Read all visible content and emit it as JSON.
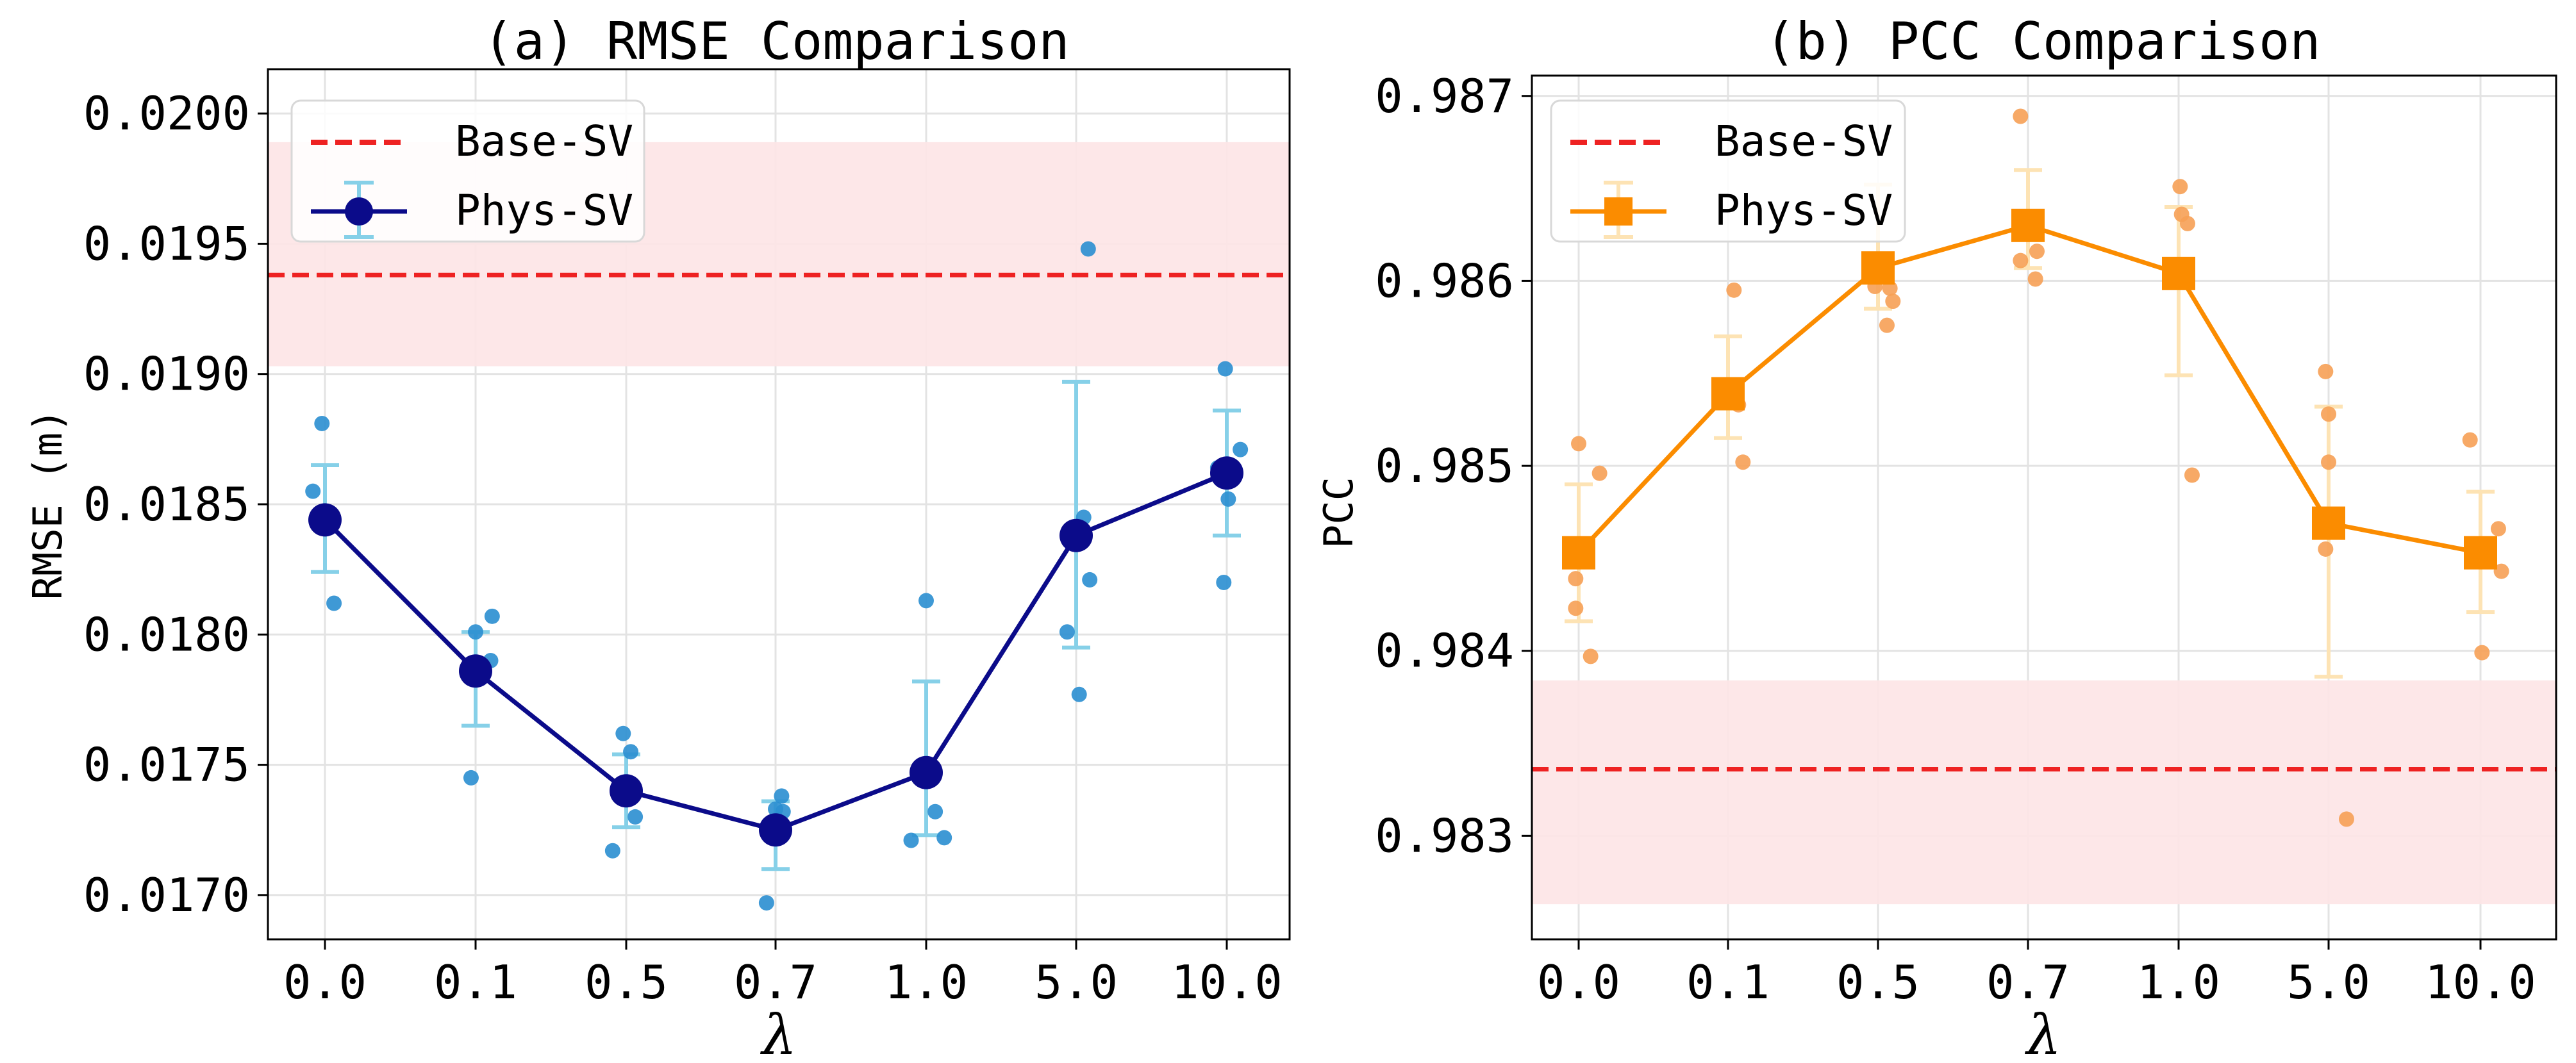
{
  "colors": {
    "base_line": "#ee2222",
    "base_band": "#fde4e6",
    "grid": "#e3e3e3",
    "rmse_line": "#0b0b8a",
    "rmse_err": "#86d0e8",
    "rmse_scatter": "#2a8ed0",
    "pcc_line": "#fb8c00",
    "pcc_err": "#fde3b4",
    "pcc_scatter": "#f6a055"
  },
  "chart_data": [
    {
      "type": "line",
      "id": "rmse",
      "title": "(a) RMSE Comparison",
      "xlabel": "λ",
      "ylabel": "RMSE (m)",
      "categories": [
        "0.0",
        "0.1",
        "0.5",
        "0.7",
        "1.0",
        "5.0",
        "10.0"
      ],
      "ylim": [
        0.01683,
        0.02017
      ],
      "yticks": [
        0.017,
        0.0175,
        0.018,
        0.0185,
        0.019,
        0.0195,
        0.02
      ],
      "ytick_labels": [
        "0.0170",
        "0.0175",
        "0.0180",
        "0.0185",
        "0.0190",
        "0.0195",
        "0.0200"
      ],
      "legend": [
        "Base-SV",
        "Phys-SV"
      ],
      "legend_position": "top-left",
      "baseline": {
        "name": "Base-SV",
        "value": 0.01938,
        "band": [
          0.01903,
          0.01989
        ]
      },
      "series": [
        {
          "name": "Phys-SV",
          "marker": "circle",
          "values": [
            0.01844,
            0.01786,
            0.0174,
            0.01725,
            0.01747,
            0.01838,
            0.01862
          ],
          "err_low": [
            0.01824,
            0.01765,
            0.01726,
            0.0171,
            0.01723,
            0.01795,
            0.01838
          ],
          "err_high": [
            0.01865,
            0.01801,
            0.01754,
            0.01736,
            0.01782,
            0.01897,
            0.01886
          ]
        }
      ],
      "runs": [
        {
          "x": [
            -0.08,
            -0.02,
            0.01,
            0.06
          ],
          "y": [
            0.01855,
            0.01881,
            0.01844,
            0.01812
          ]
        },
        {
          "x": [
            -0.03,
            0.0,
            0.1,
            0.11
          ],
          "y": [
            0.01745,
            0.01801,
            0.0179,
            0.01807
          ]
        },
        {
          "x": [
            -0.09,
            -0.02,
            0.03,
            0.06
          ],
          "y": [
            0.01717,
            0.01762,
            0.01755,
            0.0173
          ]
        },
        {
          "x": [
            -0.06,
            0.0,
            0.04,
            0.05
          ],
          "y": [
            0.01697,
            0.01733,
            0.01738,
            0.01732
          ]
        },
        {
          "x": [
            -0.1,
            0.0,
            0.06,
            0.12
          ],
          "y": [
            0.01721,
            0.01813,
            0.01732,
            0.01722
          ]
        },
        {
          "x": [
            -0.06,
            0.02,
            0.05,
            0.09
          ],
          "y": [
            0.01801,
            0.01777,
            0.01845,
            0.01821
          ]
        },
        {
          "x": [
            -0.06,
            -0.01,
            0.01,
            0.09
          ],
          "y": [
            0.01864,
            0.01902,
            0.01852,
            0.01871
          ]
        }
      ],
      "outliers": [
        {
          "cat": 5,
          "dx": 0.08,
          "y": 0.01948
        },
        {
          "cat": 6,
          "dx": -0.02,
          "y": 0.0182
        }
      ]
    },
    {
      "type": "line",
      "id": "pcc",
      "title": "(b) PCC Comparison",
      "xlabel": "λ",
      "ylabel": "PCC",
      "categories": [
        "0.0",
        "0.1",
        "0.5",
        "0.7",
        "1.0",
        "5.0",
        "10.0"
      ],
      "ylim": [
        0.98244,
        0.98711
      ],
      "yticks": [
        0.983,
        0.984,
        0.985,
        0.986,
        0.987
      ],
      "ytick_labels": [
        "0.983",
        "0.984",
        "0.985",
        "0.986",
        "0.987"
      ],
      "legend": [
        "Base-SV",
        "Phys-SV"
      ],
      "legend_position": "top-left",
      "baseline": {
        "name": "Base-SV",
        "value": 0.98336,
        "band": [
          0.98263,
          0.98384
        ]
      },
      "series": [
        {
          "name": "Phys-SV",
          "marker": "square",
          "values": [
            0.98453,
            0.98539,
            0.98607,
            0.9863,
            0.98604,
            0.98469,
            0.98453
          ],
          "err_low": [
            0.98416,
            0.98515,
            0.98585,
            0.98607,
            0.98549,
            0.98386,
            0.98421
          ],
          "err_high": [
            0.9849,
            0.9857,
            0.98652,
            0.9866,
            0.9864,
            0.98532,
            0.98486
          ]
        }
      ],
      "runs": [
        {
          "x": [
            -0.02,
            0.0,
            0.08,
            0.14
          ],
          "y": [
            0.98439,
            0.98512,
            0.98397,
            0.98496
          ]
        },
        {
          "x": [
            0.04,
            0.07,
            0.06,
            0.1
          ],
          "y": [
            0.98595,
            0.98533,
            0.98542,
            0.98502
          ]
        },
        {
          "x": [
            -0.02,
            0.08,
            0.06,
            0.1
          ],
          "y": [
            0.98597,
            0.98596,
            0.98576,
            0.98589
          ]
        },
        {
          "x": [
            -0.05,
            -0.05,
            0.05,
            0.06
          ],
          "y": [
            0.98689,
            0.98611,
            0.98601,
            0.98616
          ]
        },
        {
          "x": [
            0.01,
            0.02,
            0.06,
            0.09
          ],
          "y": [
            0.98651,
            0.98636,
            0.98631,
            0.98495
          ]
        },
        {
          "x": [
            -0.02,
            0.0,
            0.0,
            0.12
          ],
          "y": [
            0.98551,
            0.98528,
            0.98502,
            0.98309
          ]
        },
        {
          "x": [
            -0.07,
            0.01,
            0.12,
            0.14
          ],
          "y": [
            0.98514,
            0.98399,
            0.98466,
            0.98443
          ]
        }
      ],
      "outliers": [
        {
          "cat": 0,
          "dx": -0.02,
          "y": 0.98423
        },
        {
          "cat": 5,
          "dx": -0.02,
          "y": 0.98455
        }
      ]
    }
  ]
}
